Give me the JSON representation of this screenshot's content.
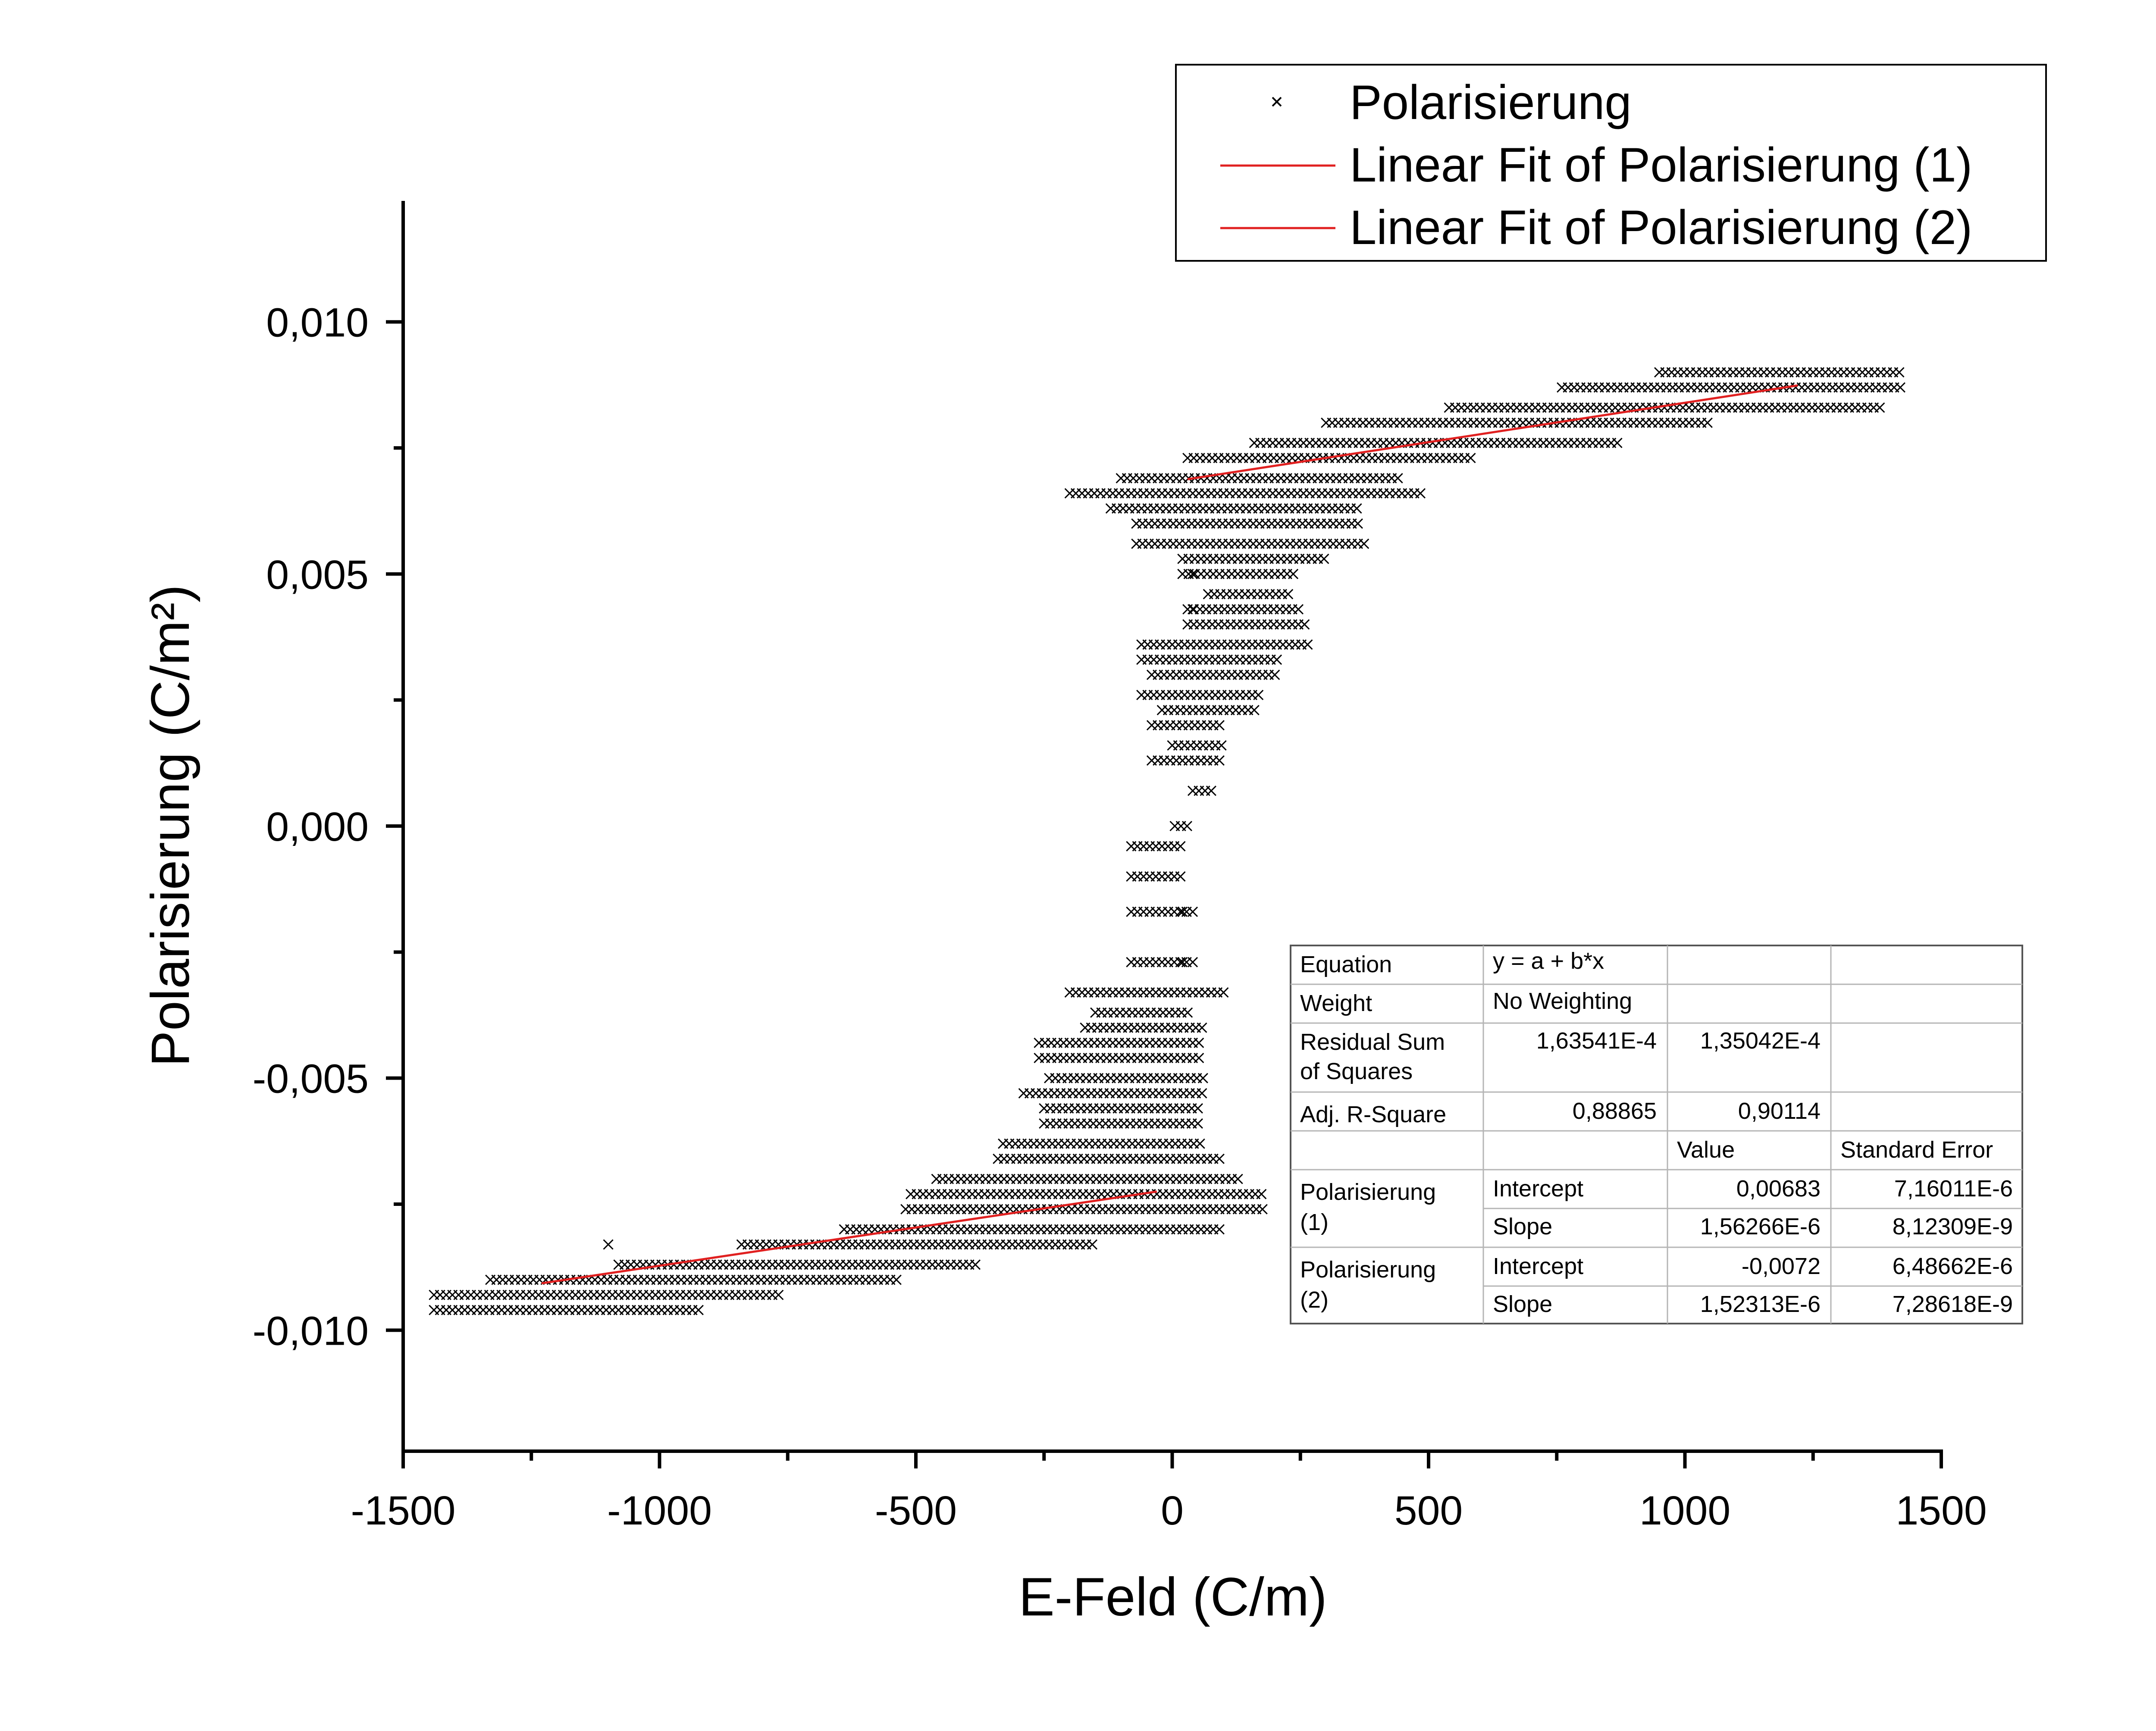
{
  "chart_data": {
    "type": "scatter",
    "xlabel": "E-Feld (C/m)",
    "ylabel": "Polarisierung (C/m²)",
    "xlim": [
      -1500,
      1500
    ],
    "ylim": [
      -0.0124,
      0.0124
    ],
    "x_ticks": [
      -1500,
      -1000,
      -500,
      0,
      500,
      1000,
      1500
    ],
    "x_tick_labels": [
      "-1500",
      "-1000",
      "-500",
      "0",
      "500",
      "1000",
      "1500"
    ],
    "y_ticks": [
      -0.01,
      -0.005,
      0.0,
      0.005,
      0.01
    ],
    "y_tick_labels": [
      "-0,010",
      "-0,005",
      "0,000",
      "0,005",
      "0,010"
    ],
    "legend": [
      {
        "label": "Polarisierung",
        "marker": "x",
        "color": "#000000"
      },
      {
        "label": "Linear Fit of Polarisierung (1)",
        "marker": "line",
        "color": "#e02020"
      },
      {
        "label": "Linear Fit of Polarisierung (2)",
        "marker": "line",
        "color": "#e02020"
      }
    ],
    "series": [
      {
        "name": "Polarisierung",
        "style": "scatter-x",
        "bands": [
          {
            "y": 0.009,
            "x": [
              950,
              1420
            ]
          },
          {
            "y": 0.0087,
            "x": [
              760,
              1420
            ]
          },
          {
            "y": 0.0083,
            "x": [
              540,
              1380
            ]
          },
          {
            "y": 0.008,
            "x": [
              300,
              1050
            ]
          },
          {
            "y": 0.0076,
            "x": [
              160,
              870
            ]
          },
          {
            "y": 0.0073,
            "x": [
              30,
              590
            ]
          },
          {
            "y": 0.0069,
            "x": [
              -100,
              440
            ]
          },
          {
            "y": 0.0066,
            "x": [
              -200,
              490
            ]
          },
          {
            "y": 0.0063,
            "x": [
              -120,
              370
            ]
          },
          {
            "y": 0.006,
            "x": [
              -70,
              370
            ]
          },
          {
            "y": 0.0056,
            "x": [
              -70,
              380
            ]
          },
          {
            "y": 0.0053,
            "x": [
              20,
              300
            ]
          },
          {
            "y": 0.005,
            "x": [
              20,
              240
            ]
          },
          {
            "y": 0.0046,
            "x": [
              70,
              230
            ]
          },
          {
            "y": 0.0043,
            "x": [
              30,
              250
            ]
          },
          {
            "y": 0.004,
            "x": [
              30,
              260
            ]
          },
          {
            "y": 0.0036,
            "x": [
              -60,
              270
            ]
          },
          {
            "y": 0.0033,
            "x": [
              -60,
              210
            ]
          },
          {
            "y": 0.003,
            "x": [
              -40,
              210
            ]
          },
          {
            "y": 0.0026,
            "x": [
              -60,
              170
            ]
          },
          {
            "y": 0.0023,
            "x": [
              -20,
              170
            ]
          },
          {
            "y": 0.002,
            "x": [
              -40,
              100
            ]
          },
          {
            "y": 0.0016,
            "x": [
              0,
              100
            ]
          },
          {
            "y": 0.0013,
            "x": [
              -40,
              100
            ]
          },
          {
            "y": 0.0007,
            "x": [
              40,
              80
            ]
          },
          {
            "y": 0.0,
            "x": [
              5,
              40
            ]
          },
          {
            "y": -0.0004,
            "x": [
              -80,
              20
            ]
          },
          {
            "y": -0.001,
            "x": [
              -80,
              20
            ]
          },
          {
            "y": -0.0017,
            "x": [
              -80,
              50
            ]
          },
          {
            "y": -0.0027,
            "x": [
              -80,
              50
            ]
          },
          {
            "y": -0.0033,
            "x": [
              -200,
              100
            ]
          },
          {
            "y": -0.0037,
            "x": [
              -150,
              40
            ]
          },
          {
            "y": -0.004,
            "x": [
              -170,
              60
            ]
          },
          {
            "y": -0.0043,
            "x": [
              -260,
              60
            ]
          },
          {
            "y": -0.0046,
            "x": [
              -260,
              60
            ]
          },
          {
            "y": -0.005,
            "x": [
              -240,
              60
            ]
          },
          {
            "y": -0.0053,
            "x": [
              -290,
              60
            ]
          },
          {
            "y": -0.0056,
            "x": [
              -250,
              60
            ]
          },
          {
            "y": -0.0059,
            "x": [
              -250,
              60
            ]
          },
          {
            "y": -0.0063,
            "x": [
              -330,
              60
            ]
          },
          {
            "y": -0.0066,
            "x": [
              -340,
              100
            ]
          },
          {
            "y": -0.007,
            "x": [
              -460,
              130
            ]
          },
          {
            "y": -0.0073,
            "x": [
              -510,
              180
            ]
          },
          {
            "y": -0.0076,
            "x": [
              -520,
              180
            ]
          },
          {
            "y": -0.008,
            "x": [
              -640,
              100
            ]
          },
          {
            "y": -0.0083,
            "x": [
              -840,
              -150
            ]
          },
          {
            "y": -0.0087,
            "x": [
              -1080,
              -380
            ]
          },
          {
            "y": -0.009,
            "x": [
              -1330,
              -530
            ]
          },
          {
            "y": -0.0093,
            "x": [
              -1440,
              -760
            ]
          },
          {
            "y": -0.0096,
            "x": [
              -1440,
              -920
            ]
          }
        ],
        "isolated_points": [
          {
            "x": -1100,
            "y": -0.0083
          },
          {
            "x": 40,
            "y": 0.005
          },
          {
            "x": 40,
            "y": 0.0043
          },
          {
            "x": 20,
            "y": -0.0017
          },
          {
            "x": 20,
            "y": -0.0027
          }
        ]
      },
      {
        "name": "Linear Fit of Polarisierung (1)",
        "style": "line",
        "x": [
          30,
          1220
        ],
        "y": [
          0.00688,
          0.00874
        ]
      },
      {
        "name": "Linear Fit of Polarisierung (2)",
        "style": "line",
        "x": [
          -1230,
          -30
        ],
        "y": [
          -0.00907,
          -0.00725
        ]
      }
    ]
  },
  "fit_table": {
    "header": {
      "value": "Value",
      "stderr": "Standard Error"
    },
    "rows": [
      {
        "label": "Equation",
        "c1": "y = a + b*x",
        "c2": "",
        "c3": ""
      },
      {
        "label": "Weight",
        "c1": "No Weighting",
        "c2": "",
        "c3": ""
      },
      {
        "label1": "Residual Sum",
        "label2": "of Squares",
        "c1": "1,63541E-4",
        "c2": "1,35042E-4",
        "c3": ""
      },
      {
        "label": "Adj. R-Square",
        "c1": "0,88865",
        "c2": "0,90114",
        "c3": ""
      }
    ],
    "groups": [
      {
        "name1": "Polarisierung",
        "name2": "(1)",
        "rows": [
          {
            "param": "Intercept",
            "value": "0,00683",
            "stderr": "7,16011E-6"
          },
          {
            "param": "Slope",
            "value": "1,56266E-6",
            "stderr": "8,12309E-9"
          }
        ]
      },
      {
        "name1": "Polarisierung",
        "name2": "(2)",
        "rows": [
          {
            "param": "Intercept",
            "value": "-0,0072",
            "stderr": "6,48662E-6"
          },
          {
            "param": "Slope",
            "value": "1,52313E-6",
            "stderr": "7,28618E-9"
          }
        ]
      }
    ]
  }
}
